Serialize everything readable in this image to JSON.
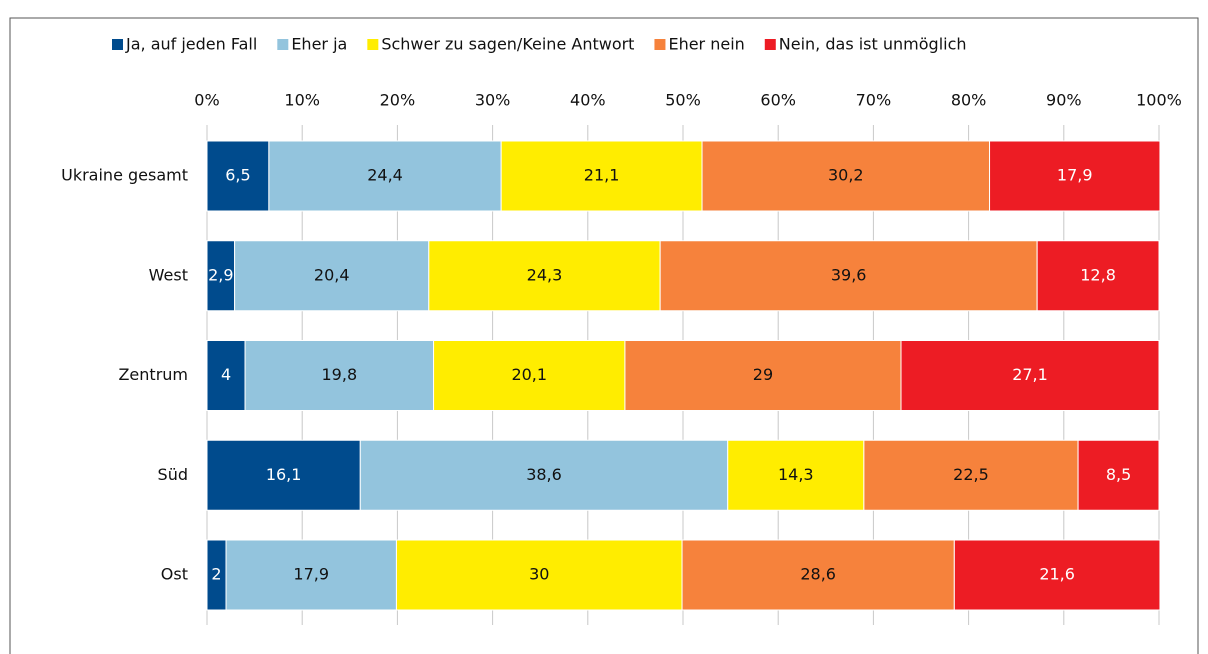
{
  "chart_data": {
    "type": "stacked-bar-horizontal",
    "categories": [
      "Ukraine gesamt",
      "West",
      "Zentrum",
      "Süd",
      "Ost"
    ],
    "series": [
      {
        "name": "Ja, auf jeden Fall",
        "color": "#004b8d",
        "values": [
          6.5,
          2.9,
          4,
          16.1,
          2
        ],
        "value_labels": [
          "6,5",
          "2,9",
          "4",
          "16,1",
          "2"
        ]
      },
      {
        "name": "Eher ja",
        "color": "#93c4dd",
        "values": [
          24.4,
          20.4,
          19.8,
          38.6,
          17.9
        ],
        "value_labels": [
          "24,4",
          "20,4",
          "19,8",
          "38,6",
          "17,9"
        ]
      },
      {
        "name": "Schwer zu sagen/Keine Antwort",
        "color": "#ffed00",
        "values": [
          21.1,
          24.3,
          20.1,
          14.3,
          30
        ],
        "value_labels": [
          "21,1",
          "24,3",
          "20,1",
          "14,3",
          "30"
        ]
      },
      {
        "name": "Eher nein",
        "color": "#f6823c",
        "values": [
          30.2,
          39.6,
          29,
          22.5,
          28.6
        ],
        "value_labels": [
          "30,2",
          "39,6",
          "29",
          "22,5",
          "28,6"
        ]
      },
      {
        "name": "Nein, das ist unmöglich",
        "color": "#ed1c24",
        "values": [
          17.9,
          12.8,
          27.1,
          8.5,
          21.6
        ],
        "value_labels": [
          "17,9",
          "12,8",
          "27,1",
          "8,5",
          "21,6"
        ]
      }
    ],
    "xlim": [
      0,
      100
    ],
    "xticks": [
      {
        "value": 0,
        "label": "0%"
      },
      {
        "value": 10,
        "label": "10%"
      },
      {
        "value": 20,
        "label": "20%"
      },
      {
        "value": 30,
        "label": "30%"
      },
      {
        "value": 40,
        "label": "40%"
      },
      {
        "value": 50,
        "label": "50%"
      },
      {
        "value": 60,
        "label": "60%"
      },
      {
        "value": 70,
        "label": "70%"
      },
      {
        "value": 80,
        "label": "80%"
      },
      {
        "value": 90,
        "label": "90%"
      },
      {
        "value": 100,
        "label": "100%"
      }
    ],
    "grid": true,
    "legend": "top"
  }
}
